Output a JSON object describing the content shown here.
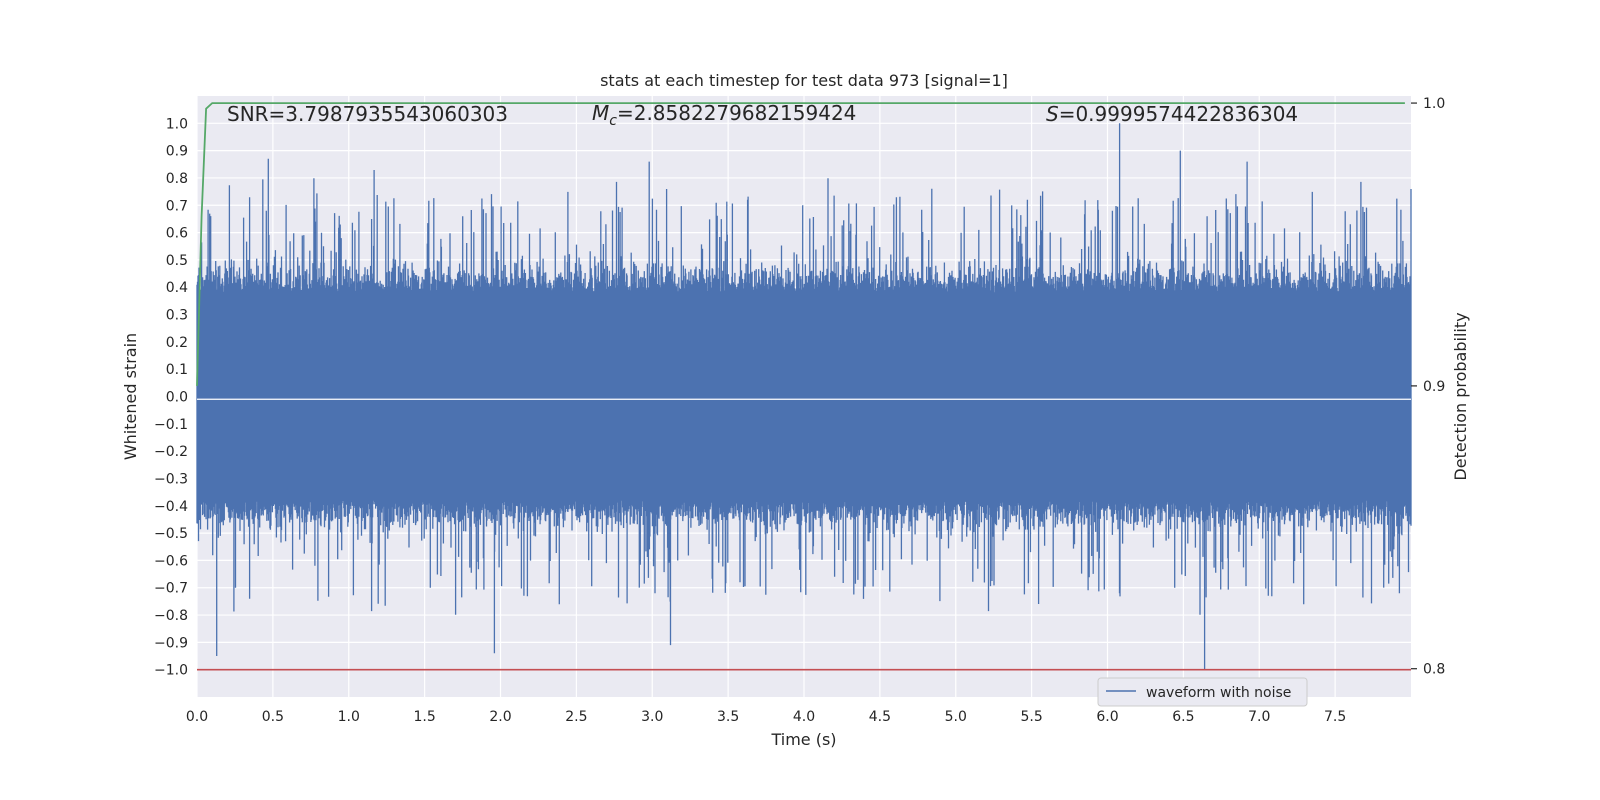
{
  "chart_data": {
    "type": "line",
    "title": "stats at each timestep for test data 973 [signal=1]",
    "xlabel": "Time (s)",
    "ylabel": "Whitened strain",
    "y2label": "Detection probability",
    "xlim": [
      0.0,
      8.0
    ],
    "ylim": [
      -1.1,
      1.1
    ],
    "y2lim": [
      0.79,
      1.0025
    ],
    "x_ticks": [
      "0.0",
      "0.5",
      "1.0",
      "1.5",
      "2.0",
      "2.5",
      "3.0",
      "3.5",
      "4.0",
      "4.5",
      "5.0",
      "5.5",
      "6.0",
      "6.5",
      "7.0",
      "7.5"
    ],
    "y_ticks": [
      "1.0",
      "0.9",
      "0.8",
      "0.7",
      "0.6",
      "0.5",
      "0.4",
      "0.3",
      "0.2",
      "0.1",
      "0.0",
      "−0.1",
      "−0.2",
      "−0.3",
      "−0.4",
      "−0.5",
      "−0.6",
      "−0.7",
      "−0.8",
      "−0.9",
      "−1.0"
    ],
    "y2_ticks": [
      "1.0",
      "0.9",
      "0.8"
    ],
    "grid": true,
    "legend_position": "lower-right",
    "annotations": {
      "snr": "SNR=3.7987935543060303",
      "mc_symbol": "M",
      "mc_sub": "c",
      "mc_value": "=2.8582279682159424",
      "s_symbol": "S",
      "s_value": "=0.9999574422836304"
    },
    "series": [
      {
        "name": "waveform with noise",
        "axis": "left",
        "color": "#4c72b0",
        "kind": "noise",
        "duration": 8.0,
        "typical_amplitude": 0.4,
        "peak_max": 1.0,
        "peak_min": -1.0
      },
      {
        "axis": "right",
        "color": "#55a868",
        "x": [
          0.0,
          0.03,
          0.06,
          0.1,
          0.2,
          1.0,
          2.0,
          3.0,
          4.0,
          5.0,
          6.0,
          7.0,
          7.96
        ],
        "y": [
          0.9,
          0.96,
          0.998,
          1.0,
          1.0,
          1.0,
          1.0,
          1.0,
          1.0,
          1.0,
          1.0,
          1.0,
          1.0
        ]
      },
      {
        "axis": "left",
        "color": "#c44e52",
        "kind": "hline",
        "y": -1.0
      }
    ]
  }
}
